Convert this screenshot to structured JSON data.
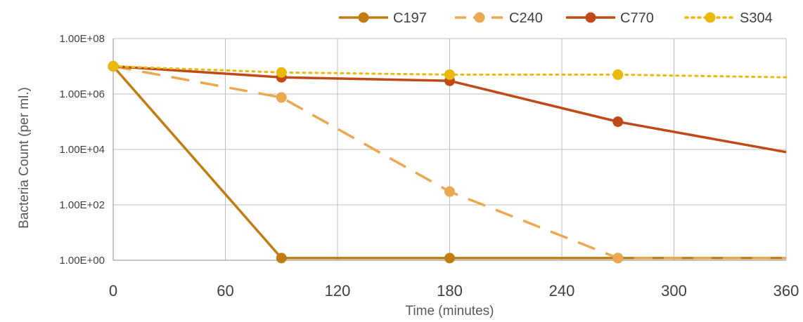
{
  "chart_data": {
    "type": "line",
    "title": "",
    "xlabel": "Time (minutes)",
    "ylabel": "Bacteria Count (per ml.)",
    "y_scale": "log",
    "x_ticks": [
      "0",
      "60",
      "120",
      "180",
      "240",
      "300",
      "360"
    ],
    "y_ticks": [
      "1.00E+00",
      "1.00E+02",
      "1.00E+04",
      "1.00E+06",
      "1.00E+08"
    ],
    "xlim": [
      0,
      360
    ],
    "ylim": [
      1,
      100000000
    ],
    "grid": true,
    "legend_position": "top-right",
    "series": [
      {
        "name": "C197",
        "color": "#bf7d12",
        "dash": "solid",
        "x": [
          0,
          90,
          180,
          270,
          360
        ],
        "y": [
          10000000,
          1.2,
          1.2,
          1.2,
          1.2
        ],
        "markers": [
          true,
          true,
          true,
          true,
          false
        ]
      },
      {
        "name": "C240",
        "color": "#eaa850",
        "dash": "dashed",
        "x": [
          0,
          90,
          180,
          270,
          360
        ],
        "y": [
          10000000,
          750000,
          300,
          1.2,
          1.2
        ],
        "markers": [
          true,
          true,
          true,
          true,
          false
        ]
      },
      {
        "name": "C770",
        "color": "#bf4a17",
        "dash": "solid",
        "x": [
          0,
          90,
          180,
          270,
          360
        ],
        "y": [
          10000000,
          4000000,
          3000000,
          100000,
          8000
        ],
        "markers": [
          true,
          true,
          true,
          true,
          false
        ]
      },
      {
        "name": "S304",
        "color": "#e9b90b",
        "dash": "dotted",
        "x": [
          0,
          90,
          180,
          270,
          360
        ],
        "y": [
          10000000,
          6000000,
          5000000,
          5000000,
          4000000
        ],
        "markers": [
          true,
          true,
          true,
          true,
          false
        ]
      }
    ]
  }
}
